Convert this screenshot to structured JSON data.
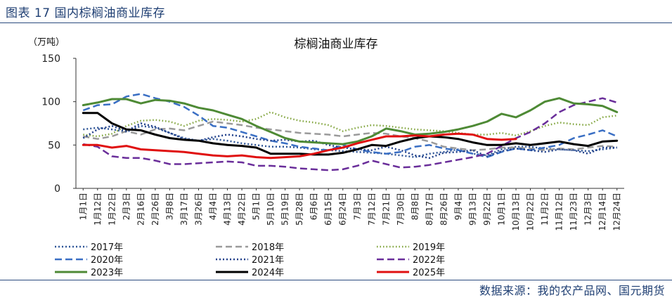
{
  "caption": "图表 17 国内棕榈油商业库存",
  "source": "数据来源：我的农产品网、国元期货",
  "chart_data": {
    "type": "line",
    "title": "棕榈油商业库存",
    "ylabel": "（万吨）",
    "ylim": [
      0,
      150
    ],
    "yticks": [
      0,
      50,
      100,
      150
    ],
    "categories": [
      "1月1日",
      "1月12日",
      "1月22日",
      "2月3日",
      "2月16日",
      "2月26日",
      "3月8日",
      "3月17日",
      "3月26日",
      "4月4日",
      "4月13日",
      "4月22日",
      "5月1日",
      "5月10日",
      "5月19日",
      "5月28日",
      "6月6日",
      "6月15日",
      "6月24日",
      "7月3日",
      "7月12日",
      "7月21日",
      "7月30日",
      "8月8日",
      "8月17日",
      "8月26日",
      "9月4日",
      "9月13日",
      "9月22日",
      "10月1日",
      "10月13日",
      "10月22日",
      "11月2日",
      "11月12日",
      "11月23日",
      "12月3日",
      "12月14日",
      "12月24日"
    ],
    "series": [
      {
        "name": "2017年",
        "color": "#2e5597",
        "dash": "2,3",
        "width": 2.5,
        "values": [
          68,
          70,
          68,
          65,
          72,
          70,
          64,
          58,
          55,
          57,
          55,
          52,
          50,
          48,
          48,
          47,
          45,
          44,
          43,
          42,
          41,
          40,
          38,
          36,
          40,
          42,
          45,
          40,
          38,
          45,
          48,
          48,
          46,
          45,
          44,
          43,
          45,
          47
        ]
      },
      {
        "name": "2018年",
        "color": "#9a9a9a",
        "dash": "9,5",
        "width": 2.5,
        "values": [
          60,
          57,
          60,
          66,
          62,
          68,
          69,
          67,
          72,
          77,
          75,
          73,
          70,
          68,
          66,
          64,
          63,
          62,
          60,
          62,
          64,
          63,
          60,
          58,
          54,
          48,
          46,
          44,
          45,
          47,
          47,
          46,
          44,
          46,
          45,
          47,
          49,
          48
        ]
      },
      {
        "name": "2019年",
        "color": "#7fa33a",
        "dash": "1.5,3",
        "width": 2.5,
        "values": [
          62,
          60,
          63,
          72,
          78,
          79,
          77,
          72,
          78,
          80,
          79,
          77,
          80,
          88,
          82,
          78,
          76,
          73,
          66,
          70,
          73,
          72,
          70,
          68,
          67,
          66,
          64,
          62,
          62,
          64,
          61,
          66,
          72,
          76,
          74,
          73,
          82,
          84
        ]
      },
      {
        "name": "2020年",
        "color": "#3a6fc4",
        "dash": "10,5",
        "width": 2.5,
        "values": [
          90,
          96,
          97,
          106,
          109,
          104,
          100,
          94,
          84,
          72,
          70,
          65,
          60,
          55,
          52,
          48,
          46,
          44,
          50,
          45,
          42,
          40,
          42,
          48,
          50,
          46,
          44,
          40,
          36,
          42,
          46,
          44,
          47,
          50,
          58,
          62,
          67,
          60
        ]
      },
      {
        "name": "2021年",
        "color": "#1f3f8a",
        "dash": "2,3",
        "width": 2.5,
        "values": [
          58,
          68,
          72,
          66,
          75,
          71,
          64,
          57,
          55,
          59,
          62,
          60,
          57,
          55,
          56,
          54,
          55,
          50,
          47,
          45,
          44,
          48,
          44,
          38,
          35,
          41,
          42,
          44,
          37,
          43,
          46,
          44,
          42,
          45,
          44,
          40,
          47,
          47
        ]
      },
      {
        "name": "2022年",
        "color": "#6a2e9a",
        "dash": "10,5",
        "width": 2.5,
        "values": [
          51,
          48,
          37,
          35,
          35,
          32,
          28,
          28,
          29,
          30,
          31,
          30,
          26,
          26,
          25,
          23,
          22,
          21,
          22,
          26,
          32,
          28,
          24,
          25,
          27,
          30,
          33,
          36,
          40,
          49,
          58,
          65,
          75,
          88,
          96,
          100,
          104,
          99
        ]
      },
      {
        "name": "2023年",
        "color": "#4e8a35",
        "dash": "",
        "width": 3,
        "values": [
          96,
          99,
          103,
          103,
          98,
          102,
          101,
          98,
          93,
          90,
          85,
          80,
          72,
          65,
          58,
          54,
          53,
          52,
          51,
          54,
          60,
          69,
          66,
          62,
          63,
          65,
          68,
          72,
          77,
          86,
          82,
          90,
          100,
          104,
          98,
          97,
          95,
          88
        ]
      },
      {
        "name": "2024年",
        "color": "#000000",
        "dash": "",
        "width": 3,
        "values": [
          87,
          87,
          75,
          68,
          67,
          62,
          58,
          56,
          55,
          52,
          50,
          49,
          47,
          40,
          40,
          40,
          39,
          39,
          41,
          45,
          50,
          49,
          54,
          58,
          60,
          59,
          57,
          53,
          50,
          50,
          52,
          50,
          52,
          54,
          51,
          49,
          54,
          55
        ]
      },
      {
        "name": "2025年",
        "color": "#e01010",
        "dash": "",
        "width": 3,
        "values": [
          50,
          50,
          47,
          49,
          45,
          44,
          43,
          42,
          40,
          38,
          37,
          38,
          36,
          35,
          36,
          37,
          40,
          44,
          47,
          52,
          56,
          60,
          60,
          61,
          60,
          62,
          63,
          62,
          57,
          56,
          57,
          null,
          null,
          null,
          null,
          null,
          null,
          null
        ]
      }
    ]
  }
}
